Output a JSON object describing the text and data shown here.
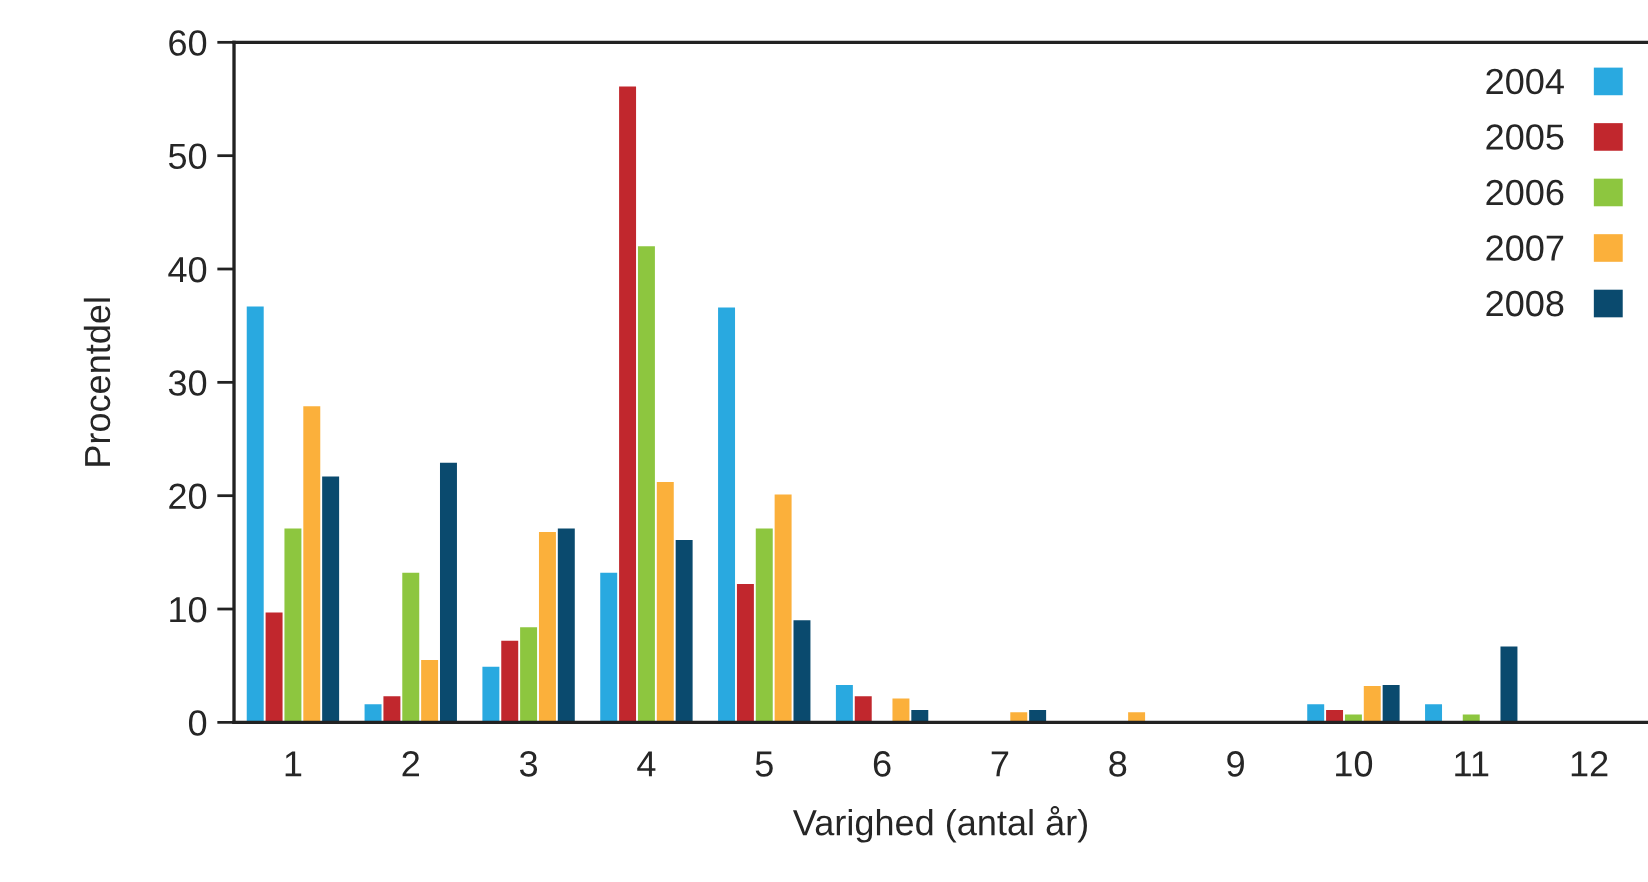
{
  "chart_data": {
    "type": "bar",
    "xlabel": "Varighed (antal år)",
    "ylabel": "Procentdel",
    "categories": [
      "1",
      "2",
      "3",
      "4",
      "5",
      "6",
      "7",
      "8",
      "9",
      "10",
      "11",
      "12"
    ],
    "series": [
      {
        "name": "2004",
        "color": "#29a9e0",
        "values": [
          36.7,
          1.6,
          4.9,
          13.2,
          36.6,
          3.3,
          null,
          null,
          null,
          1.6,
          1.6,
          null
        ]
      },
      {
        "name": "2005",
        "color": "#c1272d",
        "values": [
          9.7,
          2.3,
          7.2,
          56.1,
          12.2,
          2.3,
          null,
          null,
          null,
          1.1,
          null,
          null
        ]
      },
      {
        "name": "2006",
        "color": "#8dc63f",
        "values": [
          17.1,
          13.2,
          8.4,
          42.0,
          17.1,
          null,
          null,
          null,
          null,
          0.7,
          0.7,
          null
        ]
      },
      {
        "name": "2007",
        "color": "#fbb03b",
        "values": [
          27.9,
          5.5,
          16.8,
          21.2,
          20.1,
          2.1,
          0.9,
          0.9,
          null,
          3.2,
          null,
          null
        ]
      },
      {
        "name": "2008",
        "color": "#0a4a6e",
        "values": [
          21.7,
          22.9,
          17.1,
          16.1,
          9.0,
          1.1,
          1.1,
          null,
          null,
          3.3,
          6.7,
          null
        ]
      }
    ],
    "ylim": [
      0,
      60
    ],
    "yticks": [
      0,
      10,
      20,
      30,
      40,
      50,
      60
    ],
    "grid": false,
    "legend": "top right"
  }
}
